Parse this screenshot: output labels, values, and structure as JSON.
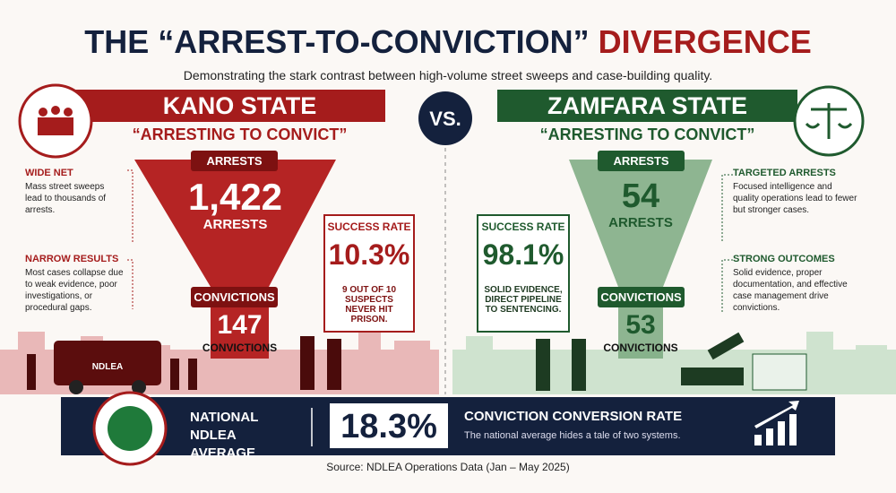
{
  "title": {
    "main": "THE “ARREST-TO-CONVICTION”",
    "accent": "DIVERGENCE"
  },
  "subtitle": "Demonstrating the stark contrast between high-volume street sweeps and case-building quality.",
  "vs": "VS.",
  "kano": {
    "name": "KANO STATE",
    "tagline": "“ARRESTING TO CONVICT”",
    "funnel": {
      "arrests_label": "ARRESTS",
      "arrests_value": "1,422",
      "arrests_unit": "ARRESTS",
      "convictions_label": "CONVICTIONS",
      "convictions_value": "147",
      "convictions_unit": "CONVICTIONS"
    },
    "notes": [
      {
        "heading": "WIDE NET",
        "text": "Mass street sweeps lead to thousands of arrests."
      },
      {
        "heading": "NARROW RESULTS",
        "text": "Most cases collapse due to weak evidence, poor investigations, or procedural gaps."
      }
    ],
    "success": {
      "label": "SUCCESS RATE",
      "value": "10.3%",
      "note": "9 OUT OF 10 SUSPECTS NEVER HIT PRISON."
    },
    "van_label": "NDLEA"
  },
  "zamfara": {
    "name": "ZAMFARA STATE",
    "tagline": "“ARRESTING TO CONVICT”",
    "funnel": {
      "arrests_label": "ARRESTS",
      "arrests_value": "54",
      "arrests_unit": "ARRESTS",
      "convictions_label": "CONVICTIONS",
      "convictions_value": "53",
      "convictions_unit": "CONVICTIONS"
    },
    "notes": [
      {
        "heading": "TARGETED ARRESTS",
        "text": "Focused intelligence and quality operations lead to fewer but stronger cases."
      },
      {
        "heading": "STRONG OUTCOMES",
        "text": "Solid evidence, proper documentation, and effective case management drive convictions."
      }
    ],
    "success": {
      "label": "SUCCESS RATE",
      "value": "98.1%",
      "note": "SOLID EVIDENCE, DIRECT PIPELINE TO SENTENCING."
    }
  },
  "national": {
    "label": "NATIONAL NDLEA AVERAGE",
    "value": "18.3%",
    "heading": "CONVICTION CONVERSION RATE",
    "text": "The national average hides a tale of two systems."
  },
  "source": "Source: NDLEA Operations Data  (Jan – May 2025)"
}
